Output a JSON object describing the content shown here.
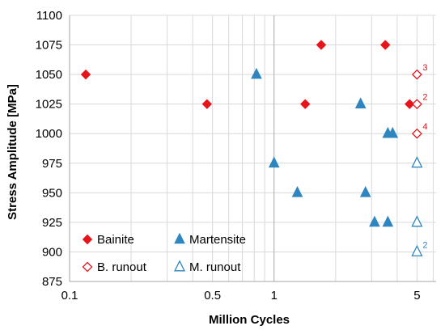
{
  "chart_data": {
    "type": "scatter",
    "xlabel": "Million Cycles",
    "ylabel": "Stress Amplitude [MPa]",
    "xscale": "log",
    "xlim": [
      0.1,
      6.2
    ],
    "ylim": [
      875,
      1100
    ],
    "xticks": [
      {
        "value": 0.1,
        "label": "0.1"
      },
      {
        "value": 0.5,
        "label": "0.5"
      },
      {
        "value": 1,
        "label": "1"
      },
      {
        "value": 5,
        "label": "5"
      }
    ],
    "yticks": [
      "875",
      "900",
      "925",
      "950",
      "975",
      "1000",
      "1025",
      "1050",
      "1075",
      "1100"
    ],
    "grid": true,
    "legend_position": "bottom-left",
    "series": [
      {
        "name": "Bainite",
        "marker": "diamond",
        "filled": true,
        "color": "#e8141b",
        "points": [
          {
            "x": 0.12,
            "y": 1050
          },
          {
            "x": 0.47,
            "y": 1025
          },
          {
            "x": 1.42,
            "y": 1025
          },
          {
            "x": 1.7,
            "y": 1075
          },
          {
            "x": 3.5,
            "y": 1075
          },
          {
            "x": 4.6,
            "y": 1025
          }
        ]
      },
      {
        "name": "Martensite",
        "marker": "triangle",
        "filled": true,
        "color": "#2e86c1",
        "points": [
          {
            "x": 0.82,
            "y": 1050
          },
          {
            "x": 1.0,
            "y": 975
          },
          {
            "x": 1.3,
            "y": 950
          },
          {
            "x": 2.65,
            "y": 1025
          },
          {
            "x": 2.8,
            "y": 950
          },
          {
            "x": 3.1,
            "y": 925
          },
          {
            "x": 3.6,
            "y": 925
          },
          {
            "x": 3.6,
            "y": 1000
          },
          {
            "x": 3.8,
            "y": 1000
          }
        ]
      },
      {
        "name": "B. runout",
        "marker": "diamond",
        "filled": false,
        "color": "#e8141b",
        "points": [
          {
            "x": 5,
            "y": 1050,
            "label": "3"
          },
          {
            "x": 5,
            "y": 1025,
            "label": "2"
          },
          {
            "x": 5,
            "y": 1000,
            "label": "4"
          }
        ]
      },
      {
        "name": "M. runout",
        "marker": "triangle",
        "filled": false,
        "color": "#2e86c1",
        "points": [
          {
            "x": 5,
            "y": 975
          },
          {
            "x": 5,
            "y": 925
          },
          {
            "x": 5,
            "y": 900,
            "label": "2"
          }
        ]
      }
    ],
    "legend": [
      {
        "label": "Bainite",
        "series": 0
      },
      {
        "label": "Martensite",
        "series": 1
      },
      {
        "label": "B. runout",
        "series": 2
      },
      {
        "label": "M. runout",
        "series": 3
      }
    ]
  }
}
